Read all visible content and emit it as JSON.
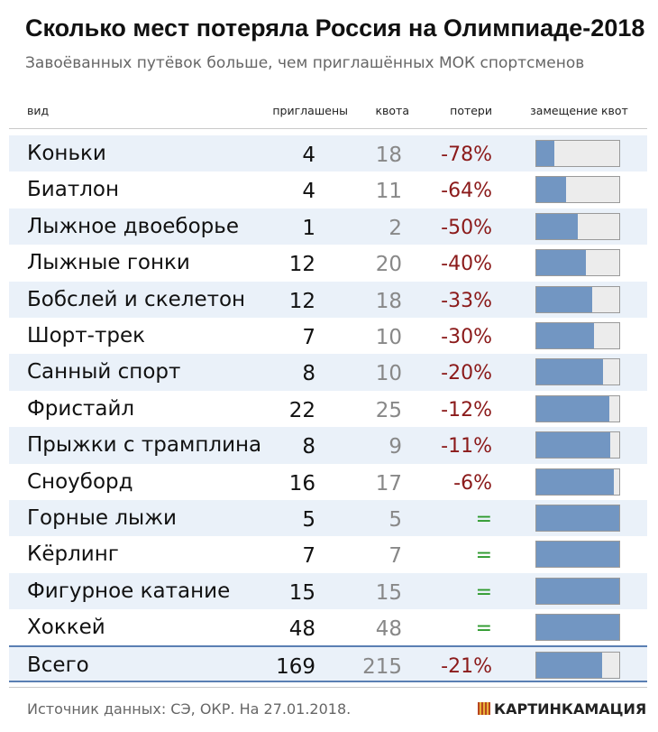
{
  "header": {
    "title": "Сколько мест потеряла Россия на Олимпиаде-2018",
    "subtitle": "Завоёванных путёвок больше, чем приглашённых МОК спортсменов"
  },
  "columns": {
    "kind": "вид",
    "invited": "приглашены",
    "quota": "квота",
    "loss": "потери",
    "replacement": "замещение квот"
  },
  "chart_data": {
    "type": "table",
    "rows": [
      {
        "sport": "Коньки",
        "invited": 4,
        "quota": 18,
        "loss": "-78%",
        "fill": 0.22
      },
      {
        "sport": "Биатлон",
        "invited": 4,
        "quota": 11,
        "loss": "-64%",
        "fill": 0.36
      },
      {
        "sport": "Лыжное двоеборье",
        "invited": 1,
        "quota": 2,
        "loss": "-50%",
        "fill": 0.5
      },
      {
        "sport": "Лыжные гонки",
        "invited": 12,
        "quota": 20,
        "loss": "-40%",
        "fill": 0.6
      },
      {
        "sport": "Бобслей и скелетон",
        "invited": 12,
        "quota": 18,
        "loss": "-33%",
        "fill": 0.67
      },
      {
        "sport": "Шорт-трек",
        "invited": 7,
        "quota": 10,
        "loss": "-30%",
        "fill": 0.7
      },
      {
        "sport": "Санный спорт",
        "invited": 8,
        "quota": 10,
        "loss": "-20%",
        "fill": 0.8
      },
      {
        "sport": "Фристайл",
        "invited": 22,
        "quota": 25,
        "loss": "-12%",
        "fill": 0.88
      },
      {
        "sport": "Прыжки с трамплина",
        "invited": 8,
        "quota": 9,
        "loss": "-11%",
        "fill": 0.89
      },
      {
        "sport": "Сноуборд",
        "invited": 16,
        "quota": 17,
        "loss": "-6%",
        "fill": 0.94
      },
      {
        "sport": "Горные лыжи",
        "invited": 5,
        "quota": 5,
        "loss": "=",
        "fill": 1.0
      },
      {
        "sport": "Кёрлинг",
        "invited": 7,
        "quota": 7,
        "loss": "=",
        "fill": 1.0
      },
      {
        "sport": "Фигурное катание",
        "invited": 15,
        "quota": 15,
        "loss": "=",
        "fill": 1.0
      },
      {
        "sport": "Хоккей",
        "invited": 48,
        "quota": 48,
        "loss": "=",
        "fill": 1.0
      },
      {
        "sport": "Всего",
        "invited": 169,
        "quota": 215,
        "loss": "-21%",
        "fill": 0.79,
        "total": true
      }
    ],
    "colors": {
      "fill": "#7296c2",
      "empty": "#ececec",
      "loss": "#8b1a1a",
      "equal": "#2e9a2e",
      "stripe": "#eaf1f9"
    }
  },
  "footer": {
    "source": "Источник данных: СЭ, ОКР. На 27.01.2018.",
    "brand": "КАРТИНКАМАЦИЯ"
  }
}
